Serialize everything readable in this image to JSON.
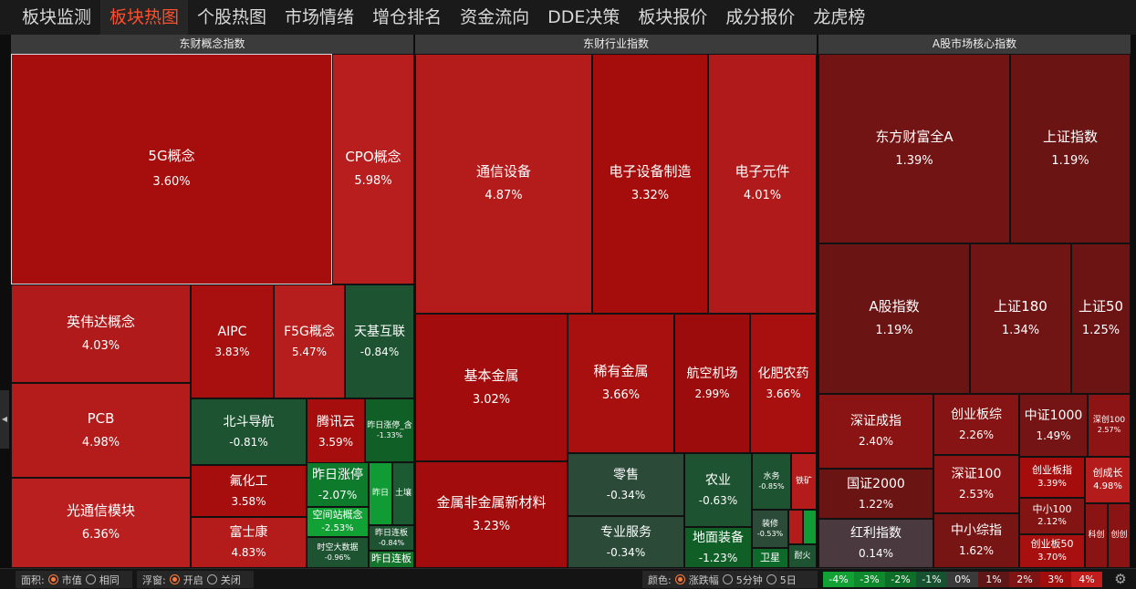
{
  "nav": {
    "tabs": [
      "板块监测",
      "板块热图",
      "个股热图",
      "市场情绪",
      "增仓排名",
      "资金流向",
      "DDE决策",
      "板块报价",
      "成分报价",
      "龙虎榜"
    ],
    "active": 1
  },
  "panels": {
    "concept": "东财概念指数",
    "industry": "东财行业指数",
    "core": "A股市场核心指数"
  },
  "tiles": [
    {
      "name": "5G概念",
      "pct": "3.60%",
      "color": "#a60d0d"
    },
    {
      "name": "CPO概念",
      "pct": "5.98%",
      "color": "#b81e1e"
    },
    {
      "name": "英伟达概念",
      "pct": "4.03%",
      "color": "#b01a1a"
    },
    {
      "name": "PCB",
      "pct": "4.98%",
      "color": "#b41c1c"
    },
    {
      "name": "光通信模块",
      "pct": "6.36%",
      "color": "#ba1f1f"
    },
    {
      "name": "AIPC",
      "pct": "3.83%",
      "color": "#a80f0f"
    },
    {
      "name": "F5G概念",
      "pct": "5.47%",
      "color": "#b61d1d"
    },
    {
      "name": "天基互联",
      "pct": "-0.84%",
      "color": "#1d5331"
    },
    {
      "name": "北斗导航",
      "pct": "-0.81%",
      "color": "#1d5331"
    },
    {
      "name": "腾讯云",
      "pct": "3.59%",
      "color": "#a60d0d"
    },
    {
      "name": "昨日涨停_含",
      "pct": "-1.33%",
      "color": "#0f5f26"
    },
    {
      "name": "氟化工",
      "pct": "3.58%",
      "color": "#a60d0d"
    },
    {
      "name": "昨日涨停",
      "pct": "-2.07%",
      "color": "#0d7a2c"
    },
    {
      "name": "昨日",
      "pct": "",
      "color": "#119b34"
    },
    {
      "name": "土壤",
      "pct": "",
      "color": "#1b5a32"
    },
    {
      "name": "空间站概念",
      "pct": "-2.53%",
      "color": "#12a135"
    },
    {
      "name": "富士康",
      "pct": "4.83%",
      "color": "#b41c1c"
    },
    {
      "name": "时空大数据",
      "pct": "-0.96%",
      "color": "#1d5331"
    },
    {
      "name": "昨日连板",
      "pct": "-0.84%",
      "color": "#1d5331"
    },
    {
      "name": "昨日连板",
      "pct": "",
      "color": "#12752b"
    },
    {
      "name": "通信设备",
      "pct": "4.87%",
      "color": "#b41c1c"
    },
    {
      "name": "电子设备制造",
      "pct": "3.32%",
      "color": "#a50d0d"
    },
    {
      "name": "电子元件",
      "pct": "4.01%",
      "color": "#b01a1a"
    },
    {
      "name": "基本金属",
      "pct": "3.02%",
      "color": "#a20c0c"
    },
    {
      "name": "稀有金属",
      "pct": "3.66%",
      "color": "#a80f0f"
    },
    {
      "name": "航空机场",
      "pct": "2.99%",
      "color": "#9c0c0c"
    },
    {
      "name": "化肥农药",
      "pct": "3.66%",
      "color": "#a80f0f"
    },
    {
      "name": "金属非金属新材料",
      "pct": "3.23%",
      "color": "#a20c0c"
    },
    {
      "name": "零售",
      "pct": "-0.34%",
      "color": "#2b4a38"
    },
    {
      "name": "专业服务",
      "pct": "-0.34%",
      "color": "#2b4a38"
    },
    {
      "name": "农业",
      "pct": "-0.63%",
      "color": "#1d5331"
    },
    {
      "name": "地面装备",
      "pct": "-1.23%",
      "color": "#0f5f26"
    },
    {
      "name": "水务",
      "pct": "-0.85%",
      "color": "#1d5331"
    },
    {
      "name": "装修",
      "pct": "-0.53%",
      "color": "#2b4a38"
    },
    {
      "name": "铁矿",
      "pct": "",
      "color": "#b41c1c"
    },
    {
      "name": "",
      "pct": "",
      "color": "#b41c1c"
    },
    {
      "name": "",
      "pct": "",
      "color": "#119b34"
    },
    {
      "name": "卫星",
      "pct": "",
      "color": "#0d6a2a"
    },
    {
      "name": "耐火",
      "pct": "",
      "color": "#1d5331"
    },
    {
      "name": "东方财富全A",
      "pct": "1.39%",
      "color": "#731414"
    },
    {
      "name": "上证指数",
      "pct": "1.19%",
      "color": "#6a1414"
    },
    {
      "name": "A股指数",
      "pct": "1.19%",
      "color": "#6a1414"
    },
    {
      "name": "上证180",
      "pct": "1.34%",
      "color": "#701414"
    },
    {
      "name": "上证50",
      "pct": "1.25%",
      "color": "#6c1414"
    },
    {
      "name": "深证成指",
      "pct": "2.40%",
      "color": "#8a1414"
    },
    {
      "name": "创业板综",
      "pct": "2.26%",
      "color": "#861414"
    },
    {
      "name": "中证1000",
      "pct": "1.49%",
      "color": "#741414"
    },
    {
      "name": "深创100",
      "pct": "2.57%",
      "color": "#8d1414"
    },
    {
      "name": "国证2000",
      "pct": "1.22%",
      "color": "#6b1414"
    },
    {
      "name": "深证100",
      "pct": "2.53%",
      "color": "#8c1414"
    },
    {
      "name": "创业板指",
      "pct": "3.39%",
      "color": "#a50d0d"
    },
    {
      "name": "创成长",
      "pct": "4.98%",
      "color": "#b41c1c"
    },
    {
      "name": "红利指数",
      "pct": "0.14%",
      "color": "#4a3a40"
    },
    {
      "name": "中小综指",
      "pct": "1.62%",
      "color": "#771414"
    },
    {
      "name": "中小100",
      "pct": "2.12%",
      "color": "#831414"
    },
    {
      "name": "创业板50",
      "pct": "3.70%",
      "color": "#a80f0f"
    },
    {
      "name": "科创",
      "pct": "",
      "color": "#8a1414"
    },
    {
      "name": "创创",
      "pct": "",
      "color": "#8a1414"
    }
  ],
  "bottom": {
    "area_label": "面积:",
    "area_opts": [
      "市值",
      "相同"
    ],
    "float_label": "浮窗:",
    "float_opts": [
      "开启",
      "关闭"
    ],
    "color_label": "颜色:",
    "color_opts": [
      "涨跌幅",
      "5分钟",
      "5日"
    ],
    "legend": [
      {
        "label": "-4%",
        "color": "#12a135"
      },
      {
        "label": "-3%",
        "color": "#0e8a2d"
      },
      {
        "label": "-2%",
        "color": "#0d6e27"
      },
      {
        "label": "-1%",
        "color": "#165230"
      },
      {
        "label": "0%",
        "color": "#3a3a3a"
      },
      {
        "label": "1%",
        "color": "#5f1616"
      },
      {
        "label": "2%",
        "color": "#7e1414"
      },
      {
        "label": "3%",
        "color": "#a00d0d"
      },
      {
        "label": "4%",
        "color": "#c21c1c"
      }
    ]
  }
}
